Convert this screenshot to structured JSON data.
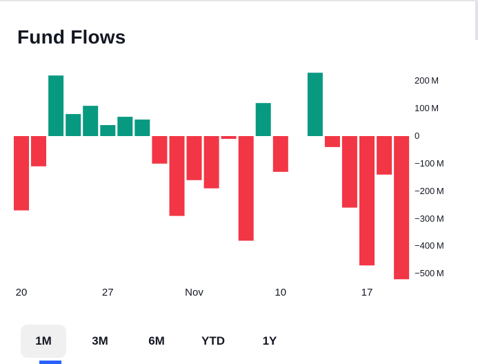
{
  "title": "Fund Flows",
  "chart_data": {
    "type": "bar",
    "title": "Fund Flows",
    "xlabel": "",
    "ylabel": "",
    "unit": "M (millions)",
    "ylim": [
      -560,
      260
    ],
    "grid": false,
    "legend": "none",
    "positive_color": "#089981",
    "negative_color": "#f23645",
    "values": [
      -270,
      -110,
      220,
      80,
      110,
      40,
      70,
      60,
      -100,
      -290,
      -160,
      -190,
      -10,
      -380,
      120,
      -130,
      0,
      230,
      -40,
      -260,
      -470,
      -140,
      -520
    ],
    "x_ticks": [
      {
        "index": 0,
        "label": "20"
      },
      {
        "index": 5,
        "label": "27"
      },
      {
        "index": 10,
        "label": "Nov"
      },
      {
        "index": 15,
        "label": "10"
      },
      {
        "index": 20,
        "label": "17"
      }
    ],
    "y_ticks": [
      {
        "value": 200,
        "label": "200 M"
      },
      {
        "value": 100,
        "label": "100 M"
      },
      {
        "value": 0,
        "label": "0"
      },
      {
        "value": -100,
        "label": "−100 M"
      },
      {
        "value": -200,
        "label": "−200 M"
      },
      {
        "value": -300,
        "label": "−300 M"
      },
      {
        "value": -400,
        "label": "−400 M"
      },
      {
        "value": -500,
        "label": "−500 M"
      }
    ]
  },
  "range_buttons": [
    {
      "label": "1M",
      "selected": true
    },
    {
      "label": "3M",
      "selected": false
    },
    {
      "label": "6M",
      "selected": false
    },
    {
      "label": "YTD",
      "selected": false
    },
    {
      "label": "1Y",
      "selected": false
    }
  ],
  "colors": {
    "text": "#131722",
    "positive": "#089981",
    "negative": "#f23645",
    "selected_button_bg": "#f0f0f0",
    "top_border": "#e6e6e6",
    "accent_blue": "#2962ff"
  }
}
